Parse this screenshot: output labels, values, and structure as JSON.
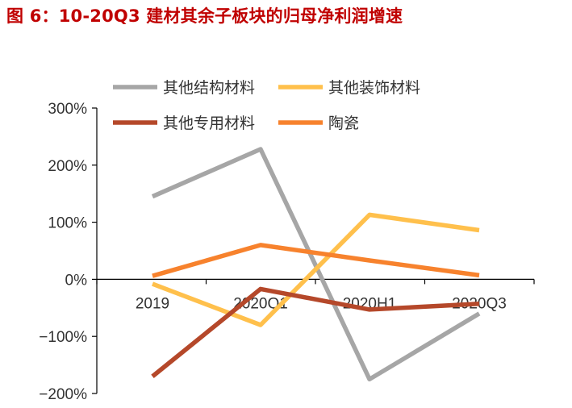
{
  "title": "图 6：10-20Q3 建材其余子板块的归母净利润增速",
  "chart_data": {
    "type": "line",
    "categories": [
      "2019",
      "2020Q1",
      "2020H1",
      "2020Q3"
    ],
    "yticks": [
      "300%",
      "200%",
      "100%",
      "0%",
      "−100%",
      "−200%"
    ],
    "ylim": [
      -200,
      300
    ],
    "legend_position": "top",
    "grid": false,
    "series": [
      {
        "name": "其他结构材料",
        "color": "#a6a6a6",
        "values": [
          145,
          228,
          -175,
          -60
        ]
      },
      {
        "name": "其他装饰材料",
        "color": "#ffc04c",
        "values": [
          -8,
          -80,
          113,
          86
        ]
      },
      {
        "name": "其他专用材料",
        "color": "#b5482a",
        "values": [
          -170,
          -17,
          -53,
          -43
        ]
      },
      {
        "name": "陶瓷",
        "color": "#f7822d",
        "values": [
          6,
          60,
          33,
          7
        ]
      }
    ]
  }
}
